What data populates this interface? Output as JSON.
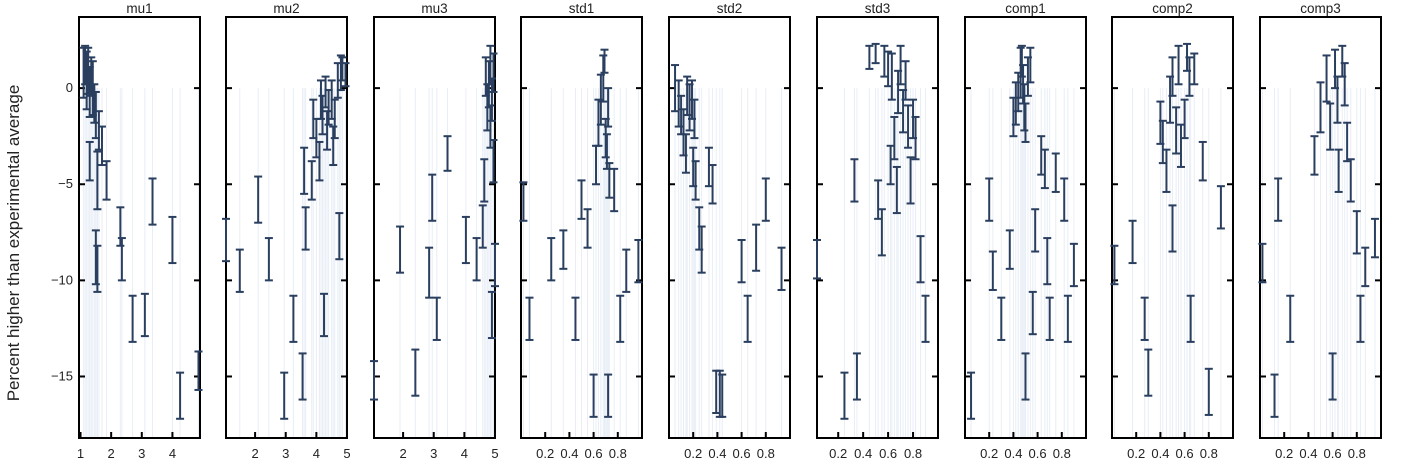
{
  "colors": {
    "errorbar": "#2a3f5f",
    "frame": "#000000",
    "grid": "#e8eef6"
  },
  "chart_data": {
    "type": "scatter",
    "ylabel": "Percent higher than experimental average",
    "ylim": [
      -18.2,
      3.7
    ],
    "yticks": [
      0,
      -5,
      -10,
      -15
    ],
    "panels": [
      {
        "title": "mu1",
        "xlim": [
          0.95,
          4.9
        ],
        "xticks": [
          1,
          2,
          3,
          4
        ],
        "points": [
          [
            1.1,
            0.8,
            1.3
          ],
          [
            1.15,
            1.2,
            1.0
          ],
          [
            1.2,
            0.4,
            1.5
          ],
          [
            1.25,
            0.9,
            1.2
          ],
          [
            1.3,
            -0.2,
            1.3
          ],
          [
            1.35,
            0.6,
            1.0
          ],
          [
            1.4,
            0.0,
            1.4
          ],
          [
            1.45,
            -0.8,
            1.0
          ],
          [
            1.5,
            -1.4,
            1.2
          ],
          [
            1.6,
            -2.2,
            1.0
          ],
          [
            1.7,
            -3.0,
            1.0
          ],
          [
            1.3,
            -3.8,
            1.0
          ],
          [
            1.55,
            -4.8,
            1.5
          ],
          [
            1.85,
            -4.8,
            1.0
          ],
          [
            2.3,
            -7.2,
            1.0
          ],
          [
            1.5,
            -8.8,
            1.4
          ],
          [
            1.55,
            -9.4,
            1.2
          ],
          [
            2.35,
            -8.9,
            1.1
          ],
          [
            2.7,
            -12.0,
            1.2
          ],
          [
            3.1,
            -11.8,
            1.1
          ],
          [
            3.35,
            -5.9,
            1.2
          ],
          [
            4.0,
            -7.9,
            1.2
          ],
          [
            4.25,
            -16.0,
            1.2
          ],
          [
            4.85,
            -14.7,
            1.0
          ]
        ]
      },
      {
        "title": "mu2",
        "xlim": [
          1.05,
          5.0
        ],
        "xticks": [
          2,
          3,
          4,
          5
        ],
        "points": [
          [
            1.05,
            -7.9,
            1.1
          ],
          [
            1.5,
            -9.5,
            1.1
          ],
          [
            2.1,
            -5.8,
            1.2
          ],
          [
            2.45,
            -8.9,
            1.1
          ],
          [
            2.95,
            -16.0,
            1.2
          ],
          [
            3.25,
            -12.0,
            1.2
          ],
          [
            3.55,
            -15.0,
            1.2
          ],
          [
            3.6,
            -4.3,
            1.2
          ],
          [
            3.65,
            -7.3,
            1.1
          ],
          [
            3.85,
            -4.8,
            1.0
          ],
          [
            3.9,
            -1.6,
            1.0
          ],
          [
            4.0,
            -2.6,
            1.0
          ],
          [
            4.1,
            -3.8,
            1.0
          ],
          [
            4.15,
            -0.6,
            1.0
          ],
          [
            4.2,
            -1.4,
            1.0
          ],
          [
            4.25,
            -11.8,
            1.1
          ],
          [
            4.3,
            -0.2,
            0.8
          ],
          [
            4.35,
            -2.2,
            1.0
          ],
          [
            4.4,
            -1.0,
            0.9
          ],
          [
            4.5,
            -0.6,
            1.0
          ],
          [
            4.55,
            -3.0,
            1.0
          ],
          [
            4.6,
            -1.6,
            1.0
          ],
          [
            4.7,
            0.4,
            0.9
          ],
          [
            4.75,
            -7.7,
            1.2
          ],
          [
            4.8,
            0.8,
            0.9
          ],
          [
            4.85,
            1.0,
            0.6
          ],
          [
            4.95,
            0.7,
            0.6
          ]
        ]
      },
      {
        "title": "mu3",
        "xlim": [
          1.05,
          5.0
        ],
        "xticks": [
          2,
          3,
          4,
          5
        ],
        "points": [
          [
            1.05,
            -15.2,
            1.0
          ],
          [
            1.9,
            -8.4,
            1.2
          ],
          [
            2.4,
            -14.8,
            1.2
          ],
          [
            2.85,
            -9.6,
            1.3
          ],
          [
            2.95,
            -5.7,
            1.2
          ],
          [
            3.1,
            -12.0,
            1.1
          ],
          [
            3.45,
            -3.4,
            0.9
          ],
          [
            4.05,
            -7.9,
            1.2
          ],
          [
            4.4,
            -8.9,
            1.1
          ],
          [
            4.6,
            -7.2,
            1.1
          ],
          [
            4.65,
            -4.8,
            1.1
          ],
          [
            4.7,
            0.6,
            1.0
          ],
          [
            4.75,
            -1.0,
            1.2
          ],
          [
            4.8,
            0.2,
            1.2
          ],
          [
            4.85,
            1.2,
            1.0
          ],
          [
            4.9,
            -0.6,
            1.1
          ],
          [
            4.95,
            0.8,
            1.0
          ],
          [
            4.85,
            -2.0,
            1.1
          ],
          [
            4.9,
            -11.8,
            1.2
          ],
          [
            4.95,
            -3.8,
            1.1
          ],
          [
            5.0,
            -9.2,
            1.1
          ]
        ]
      },
      {
        "title": "std1",
        "xlim": [
          0.0,
          1.0
        ],
        "xticks": [
          0.2,
          0.4,
          0.6,
          0.8
        ],
        "points": [
          [
            0.02,
            -5.9,
            1.0
          ],
          [
            0.07,
            -12.0,
            1.1
          ],
          [
            0.25,
            -8.9,
            1.1
          ],
          [
            0.35,
            -8.4,
            1.0
          ],
          [
            0.45,
            -12.0,
            1.1
          ],
          [
            0.5,
            -5.8,
            1.0
          ],
          [
            0.55,
            -7.3,
            1.0
          ],
          [
            0.6,
            -16.0,
            1.1
          ],
          [
            0.62,
            -4.0,
            1.0
          ],
          [
            0.64,
            -1.8,
            1.2
          ],
          [
            0.66,
            -0.6,
            1.3
          ],
          [
            0.68,
            0.5,
            1.2
          ],
          [
            0.69,
            1.4,
            0.6
          ],
          [
            0.7,
            -2.6,
            1.0
          ],
          [
            0.71,
            -3.3,
            0.9
          ],
          [
            0.72,
            -1.0,
            1.0
          ],
          [
            0.72,
            -16.0,
            1.1
          ],
          [
            0.73,
            -4.8,
            0.9
          ],
          [
            0.77,
            -5.3,
            1.1
          ],
          [
            0.82,
            -12.0,
            1.2
          ],
          [
            0.87,
            -9.5,
            1.1
          ],
          [
            0.97,
            -9.0,
            1.1
          ]
        ]
      },
      {
        "title": "std2",
        "xlim": [
          0.0,
          1.0
        ],
        "xticks": [
          0.2,
          0.4,
          0.6,
          0.8
        ],
        "points": [
          [
            0.05,
            0.0,
            1.2
          ],
          [
            0.08,
            -0.8,
            1.2
          ],
          [
            0.1,
            -1.4,
            1.0
          ],
          [
            0.12,
            -2.3,
            1.2
          ],
          [
            0.14,
            -3.4,
            1.0
          ],
          [
            0.15,
            -0.4,
            1.0
          ],
          [
            0.17,
            -1.0,
            1.2
          ],
          [
            0.19,
            -0.6,
            1.0
          ],
          [
            0.2,
            -4.1,
            1.0
          ],
          [
            0.21,
            -1.6,
            1.0
          ],
          [
            0.22,
            -4.8,
            1.0
          ],
          [
            0.25,
            -7.3,
            1.1
          ],
          [
            0.27,
            -8.4,
            1.2
          ],
          [
            0.33,
            -4.1,
            1.0
          ],
          [
            0.36,
            -5.0,
            1.0
          ],
          [
            0.39,
            -15.8,
            1.1
          ],
          [
            0.42,
            -15.9,
            1.2
          ],
          [
            0.44,
            -16.0,
            1.1
          ],
          [
            0.6,
            -9.0,
            1.1
          ],
          [
            0.65,
            -12.0,
            1.2
          ],
          [
            0.72,
            -8.3,
            1.2
          ],
          [
            0.8,
            -5.8,
            1.1
          ],
          [
            0.93,
            -9.4,
            1.1
          ]
        ]
      },
      {
        "title": "std3",
        "xlim": [
          0.03,
          1.0
        ],
        "xticks": [
          0.2,
          0.4,
          0.6,
          0.8
        ],
        "points": [
          [
            0.03,
            -8.9,
            1.0
          ],
          [
            0.25,
            -16.0,
            1.2
          ],
          [
            0.33,
            -4.8,
            1.1
          ],
          [
            0.35,
            -15.0,
            1.2
          ],
          [
            0.45,
            1.6,
            0.6
          ],
          [
            0.5,
            1.8,
            0.5
          ],
          [
            0.52,
            -5.8,
            1.0
          ],
          [
            0.55,
            -7.5,
            1.2
          ],
          [
            0.57,
            1.4,
            0.8
          ],
          [
            0.6,
            1.0,
            0.9
          ],
          [
            0.62,
            -4.0,
            1.0
          ],
          [
            0.63,
            0.6,
            1.2
          ],
          [
            0.65,
            -2.6,
            1.1
          ],
          [
            0.67,
            -5.3,
            1.2
          ],
          [
            0.68,
            -0.2,
            1.1
          ],
          [
            0.7,
            1.2,
            1.0
          ],
          [
            0.72,
            -1.2,
            1.1
          ],
          [
            0.74,
            0.4,
            1.0
          ],
          [
            0.76,
            -2.0,
            1.1
          ],
          [
            0.78,
            -4.8,
            1.2
          ],
          [
            0.8,
            -1.6,
            1.0
          ],
          [
            0.82,
            -2.6,
            1.1
          ],
          [
            0.86,
            -8.9,
            1.2
          ],
          [
            0.9,
            -12.0,
            1.2
          ]
        ]
      },
      {
        "title": "comp1",
        "xlim": [
          0.0,
          1.0
        ],
        "xticks": [
          0.2,
          0.4,
          0.6,
          0.8
        ],
        "points": [
          [
            0.05,
            -16.0,
            1.2
          ],
          [
            0.2,
            -5.8,
            1.1
          ],
          [
            0.23,
            -9.5,
            1.0
          ],
          [
            0.3,
            -12.0,
            1.1
          ],
          [
            0.37,
            -8.4,
            1.0
          ],
          [
            0.4,
            -1.5,
            1.0
          ],
          [
            0.42,
            -0.8,
            1.1
          ],
          [
            0.44,
            -0.2,
            1.0
          ],
          [
            0.46,
            0.8,
            1.3
          ],
          [
            0.47,
            1.4,
            0.8
          ],
          [
            0.48,
            0.2,
            1.0
          ],
          [
            0.49,
            -1.0,
            1.2
          ],
          [
            0.5,
            -15.0,
            1.2
          ],
          [
            0.5,
            -1.8,
            1.0
          ],
          [
            0.52,
            0.6,
            1.0
          ],
          [
            0.54,
            1.2,
            0.9
          ],
          [
            0.56,
            -11.7,
            1.1
          ],
          [
            0.58,
            -7.4,
            1.1
          ],
          [
            0.63,
            -3.5,
            1.0
          ],
          [
            0.66,
            -4.2,
            1.0
          ],
          [
            0.68,
            -9.0,
            1.2
          ],
          [
            0.7,
            -12.0,
            1.1
          ],
          [
            0.75,
            -4.4,
            1.0
          ],
          [
            0.82,
            -5.8,
            1.1
          ],
          [
            0.85,
            -12.0,
            1.2
          ],
          [
            0.9,
            -9.2,
            1.1
          ]
        ]
      },
      {
        "title": "comp2",
        "xlim": [
          0.0,
          1.0
        ],
        "xticks": [
          0.2,
          0.4,
          0.6,
          0.8
        ],
        "points": [
          [
            0.02,
            -9.2,
            1.0
          ],
          [
            0.17,
            -8.0,
            1.1
          ],
          [
            0.27,
            -12.0,
            1.1
          ],
          [
            0.3,
            -14.8,
            1.2
          ],
          [
            0.4,
            -1.8,
            1.1
          ],
          [
            0.42,
            -2.8,
            1.1
          ],
          [
            0.45,
            -4.3,
            1.1
          ],
          [
            0.48,
            -0.6,
            1.2
          ],
          [
            0.5,
            -7.3,
            1.2
          ],
          [
            0.5,
            0.6,
            1.0
          ],
          [
            0.53,
            -2.2,
            1.2
          ],
          [
            0.55,
            1.2,
            1.0
          ],
          [
            0.57,
            -3.0,
            1.1
          ],
          [
            0.6,
            -1.6,
            1.0
          ],
          [
            0.62,
            1.6,
            0.7
          ],
          [
            0.64,
            0.6,
            1.0
          ],
          [
            0.65,
            -12.0,
            1.2
          ],
          [
            0.68,
            1.0,
            0.8
          ],
          [
            0.75,
            -3.8,
            1.0
          ],
          [
            0.8,
            -15.8,
            1.2
          ],
          [
            0.9,
            -6.2,
            1.1
          ]
        ]
      },
      {
        "title": "comp3",
        "xlim": [
          0.0,
          1.0
        ],
        "xticks": [
          0.2,
          0.4,
          0.6,
          0.8
        ],
        "points": [
          [
            0.02,
            -9.1,
            1.0
          ],
          [
            0.12,
            -16.0,
            1.1
          ],
          [
            0.15,
            -5.8,
            1.1
          ],
          [
            0.25,
            -12.0,
            1.2
          ],
          [
            0.45,
            -3.5,
            1.0
          ],
          [
            0.5,
            -1.0,
            1.3
          ],
          [
            0.55,
            0.5,
            1.2
          ],
          [
            0.58,
            -2.0,
            1.2
          ],
          [
            0.6,
            -15.0,
            1.2
          ],
          [
            0.62,
            1.0,
            1.0
          ],
          [
            0.64,
            -0.6,
            1.2
          ],
          [
            0.65,
            -4.3,
            1.1
          ],
          [
            0.68,
            1.4,
            0.8
          ],
          [
            0.7,
            0.2,
            1.1
          ],
          [
            0.72,
            -2.8,
            1.0
          ],
          [
            0.75,
            -4.8,
            1.1
          ],
          [
            0.8,
            -7.5,
            1.1
          ],
          [
            0.83,
            -12.0,
            1.2
          ],
          [
            0.87,
            -9.3,
            1.0
          ],
          [
            0.95,
            -7.8,
            1.0
          ]
        ]
      }
    ]
  }
}
